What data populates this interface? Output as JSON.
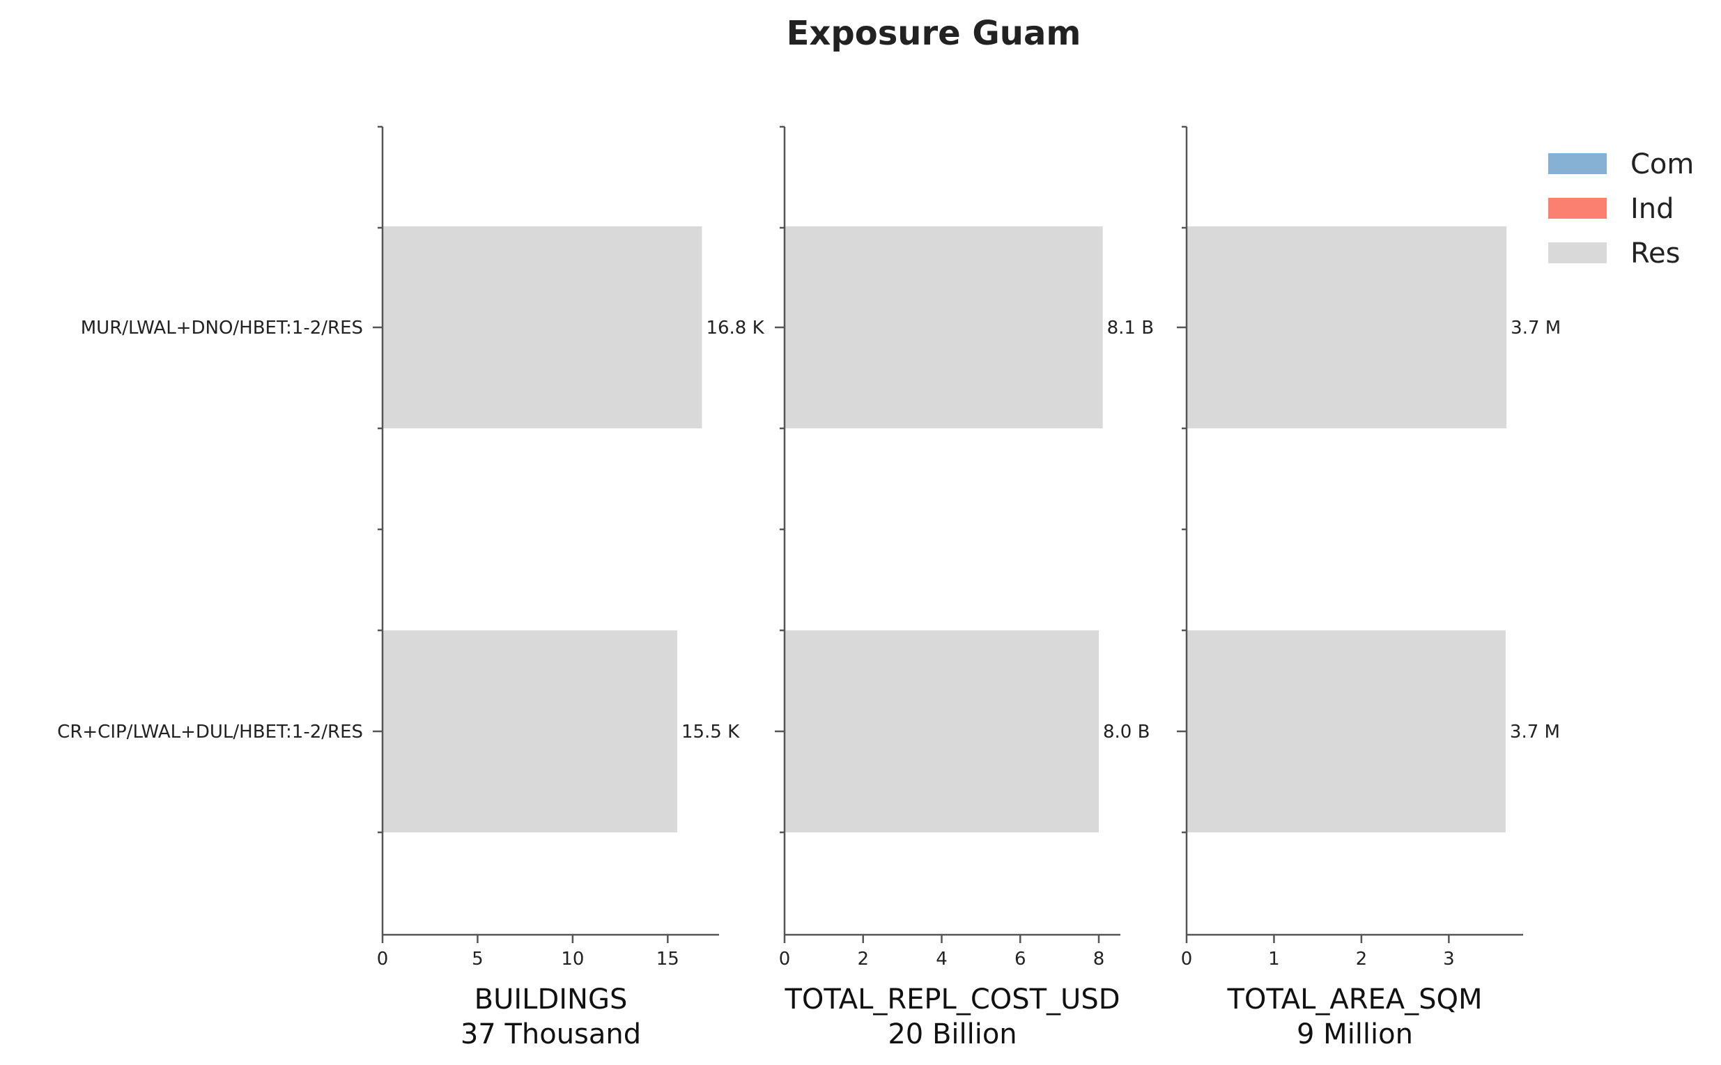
{
  "chart_data": {
    "type": "bar",
    "orientation": "horizontal",
    "title": "Exposure Guam",
    "categories": [
      "MUR/LWAL+DNO/HBET:1-2/RES",
      "CR+CIP/LWAL+DUL/HBET:1-2/RES"
    ],
    "legend": {
      "placement": "top-right",
      "entries": [
        {
          "name": "Com",
          "color": "#86b1d4"
        },
        {
          "name": "Ind",
          "color": "#fb8070"
        },
        {
          "name": "Res",
          "color": "#d9d9d9"
        }
      ]
    },
    "panels": [
      {
        "xlabel": "BUILDINGS",
        "total_label": "37 Thousand",
        "series": "Res",
        "values": [
          16.8,
          15.5
        ],
        "value_labels": [
          "16.8 K",
          "15.5 K"
        ],
        "xlim": [
          0,
          17.7
        ],
        "xticks": [
          0,
          5,
          10,
          15
        ],
        "xtick_labels": [
          "0",
          "5",
          "10",
          "15"
        ]
      },
      {
        "xlabel": "TOTAL_REPL_COST_USD",
        "total_label": "20 Billion",
        "series": "Res",
        "values": [
          8.1,
          8.0
        ],
        "value_labels": [
          "8.1 B",
          "8.0 B"
        ],
        "xlim": [
          0,
          8.55
        ],
        "xticks": [
          0,
          2,
          4,
          6,
          8
        ],
        "xtick_labels": [
          "0",
          "2",
          "4",
          "6",
          "8"
        ]
      },
      {
        "xlabel": "TOTAL_AREA_SQM",
        "total_label": "9 Million",
        "series": "Res",
        "values": [
          3.66,
          3.65
        ],
        "value_labels": [
          "3.7 M",
          "3.7 M"
        ],
        "xlim": [
          0,
          3.85
        ],
        "xticks": [
          0,
          1,
          2,
          3
        ],
        "xtick_labels": [
          "0",
          "1",
          "2",
          "3"
        ]
      }
    ],
    "bar_color": "#d9d9d9",
    "grid": false
  }
}
